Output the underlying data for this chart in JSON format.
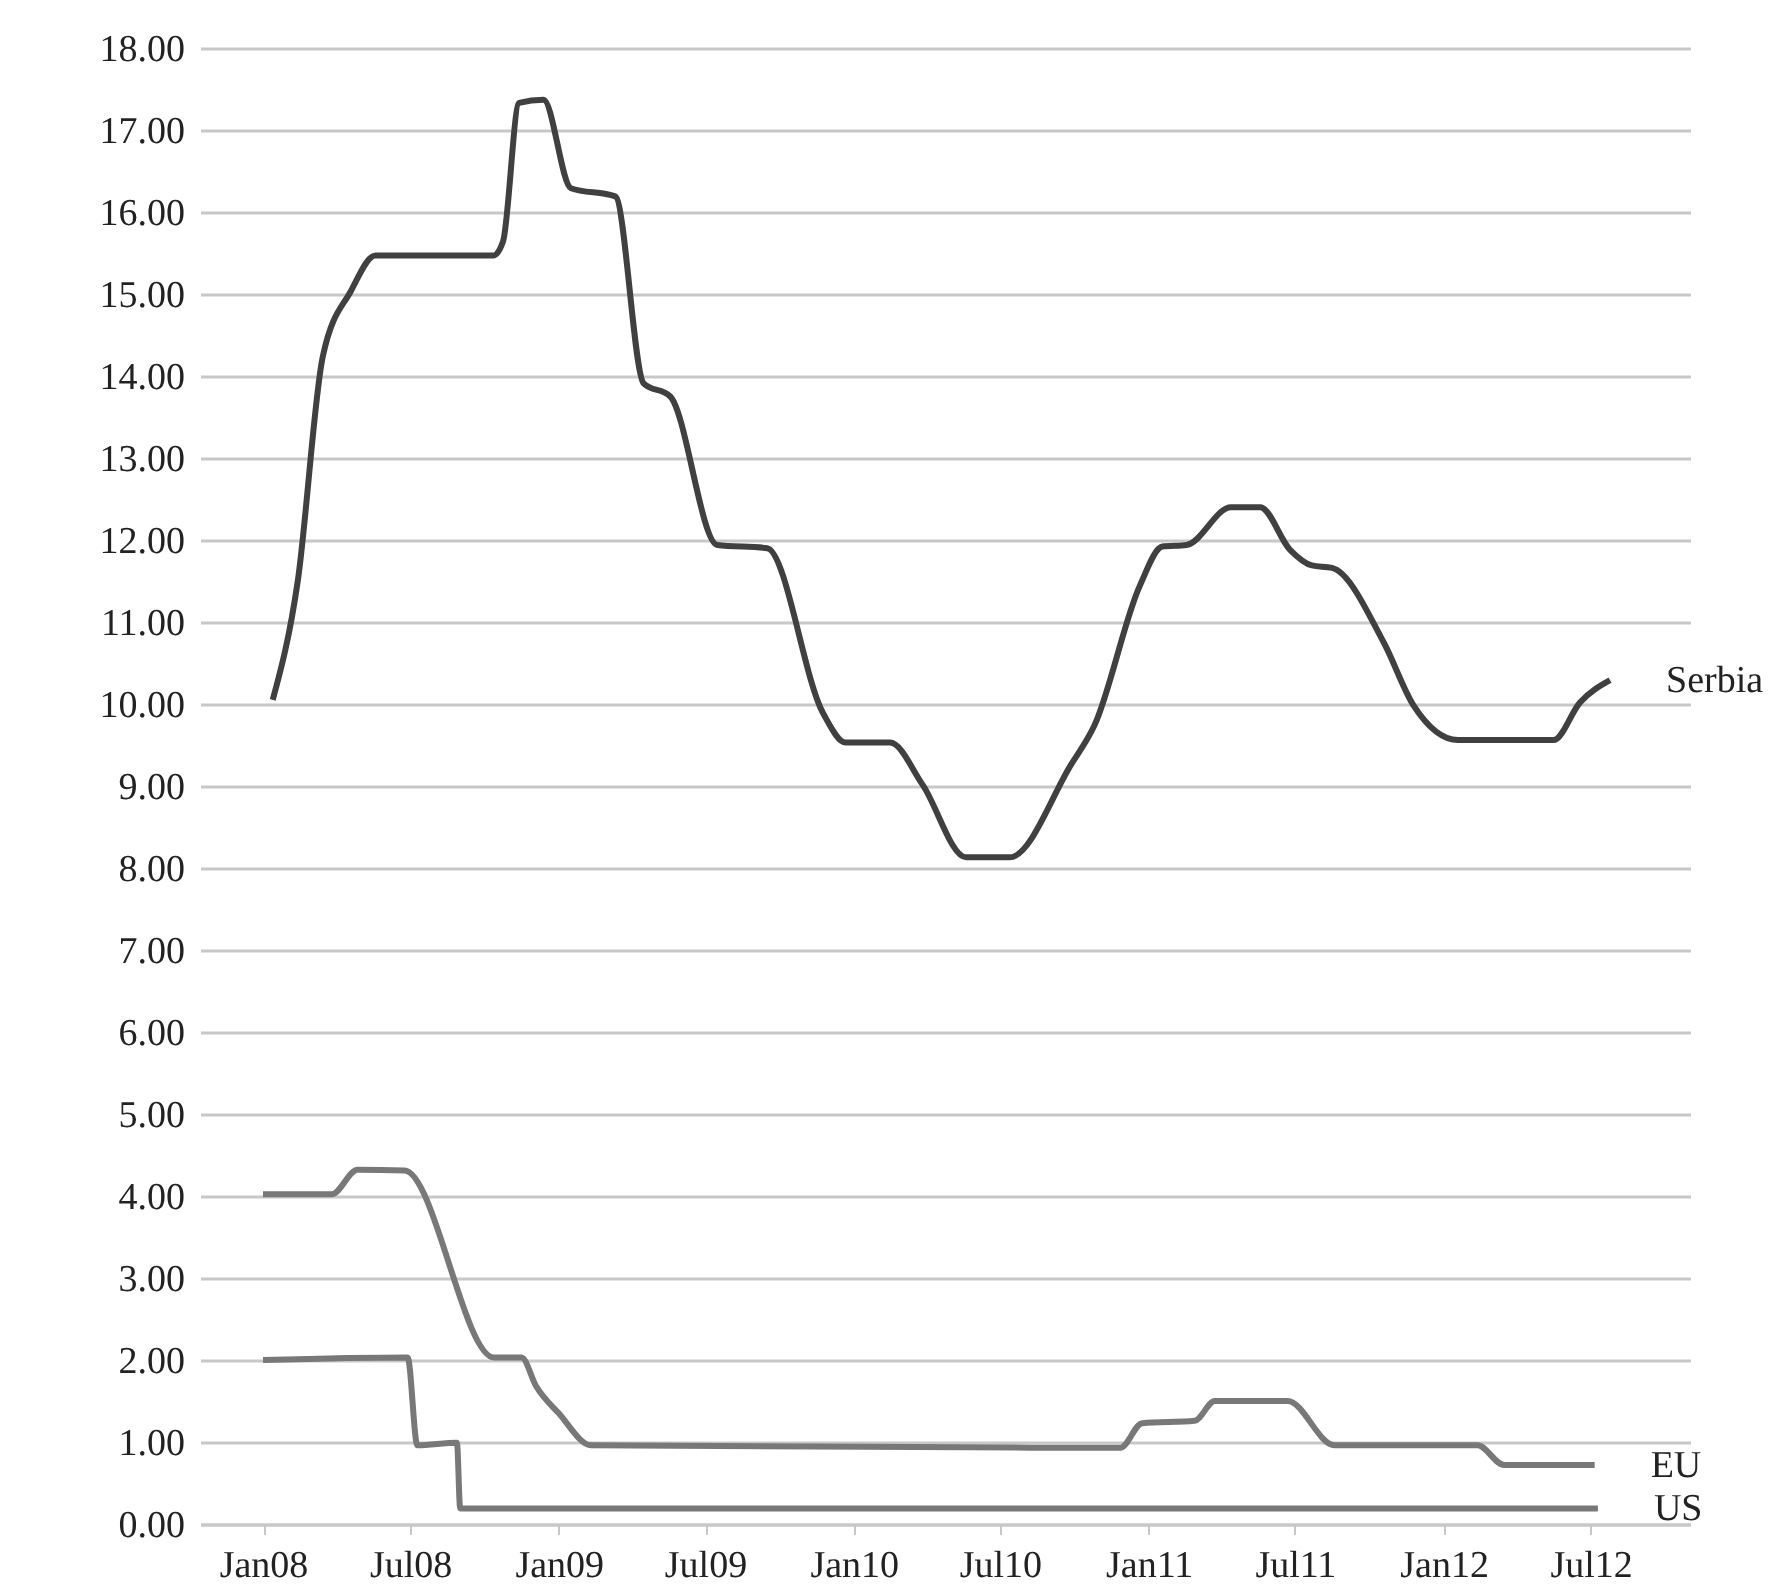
{
  "chart_data": {
    "type": "line",
    "xlim": [
      "2007-10-15",
      "2012-11-01"
    ],
    "xticks": [
      {
        "value": "2008-01-01",
        "label": "Jan08"
      },
      {
        "value": "2008-07-01",
        "label": "Jul08"
      },
      {
        "value": "2009-01-01",
        "label": "Jan09"
      },
      {
        "value": "2009-07-01",
        "label": "Jul09"
      },
      {
        "value": "2010-01-01",
        "label": "Jan10"
      },
      {
        "value": "2010-07-01",
        "label": "Jul10"
      },
      {
        "value": "2011-01-01",
        "label": "Jan11"
      },
      {
        "value": "2011-07-01",
        "label": "Jul11"
      },
      {
        "value": "2012-01-01",
        "label": "Jan12"
      },
      {
        "value": "2012-07-01",
        "label": "Jul12"
      }
    ],
    "ylim": [
      0,
      18
    ],
    "yticks": [
      {
        "value": 0,
        "label": "0.00"
      },
      {
        "value": 1,
        "label": "1.00"
      },
      {
        "value": 2,
        "label": "2.00"
      },
      {
        "value": 3,
        "label": "3.00"
      },
      {
        "value": 4,
        "label": "4.00"
      },
      {
        "value": 5,
        "label": "5.00"
      },
      {
        "value": 6,
        "label": "6.00"
      },
      {
        "value": 7,
        "label": "7.00"
      },
      {
        "value": 8,
        "label": "8.00"
      },
      {
        "value": 9,
        "label": "9.00"
      },
      {
        "value": 10,
        "label": "10.00"
      },
      {
        "value": 11,
        "label": "11.00"
      },
      {
        "value": 12,
        "label": "12.00"
      },
      {
        "value": 13,
        "label": "13.00"
      },
      {
        "value": 14,
        "label": "14.00"
      },
      {
        "value": 15,
        "label": "15.00"
      },
      {
        "value": 16,
        "label": "16.00"
      },
      {
        "value": 17,
        "label": "17.00"
      },
      {
        "value": 18,
        "label": "18.00"
      }
    ],
    "grid": "y",
    "legend": false,
    "marker": "none",
    "line_style": "solid",
    "series": [
      {
        "name": "Serbia",
        "color": "#404040",
        "x": [
          "2008-01-13",
          "2008-02-13",
          "2008-03-15",
          "2008-04-19",
          "2008-05-19",
          "2008-10-12",
          "2008-10-24",
          "2008-11-13",
          "2008-12-13",
          "2009-01-16",
          "2009-03-12",
          "2009-04-16",
          "2009-05-19",
          "2009-07-16",
          "2009-09-16",
          "2009-11-24",
          "2009-12-22",
          "2010-02-15",
          "2010-03-27",
          "2010-05-20",
          "2010-07-13",
          "2010-09-27",
          "2010-10-26",
          "2010-12-21",
          "2011-01-18",
          "2011-02-17",
          "2011-04-13",
          "2011-05-19",
          "2011-06-25",
          "2011-07-22",
          "2011-08-16",
          "2011-10-19",
          "2011-11-25",
          "2012-01-19",
          "2012-05-16",
          "2012-06-18",
          "2012-07-25"
        ],
        "values": [
          10.05,
          11.5,
          14.24,
          15.04,
          15.47,
          15.47,
          15.64,
          17.33,
          17.37,
          16.29,
          16.19,
          13.91,
          13.75,
          11.94,
          11.9,
          9.89,
          9.53,
          9.53,
          9.02,
          8.13,
          8.13,
          9.26,
          9.74,
          11.44,
          11.92,
          11.94,
          12.4,
          12.4,
          11.88,
          11.69,
          11.66,
          10.75,
          9.98,
          9.56,
          9.56,
          10.02,
          10.29
        ]
      },
      {
        "name": "EU",
        "color": "#787878",
        "x": [
          "2008-01-01",
          "2008-03-26",
          "2008-04-27",
          "2008-06-24",
          "2008-10-13",
          "2008-11-16",
          "2008-12-04",
          "2009-01-01",
          "2009-02-10",
          "2010-11-27",
          "2010-12-24",
          "2011-02-27",
          "2011-03-24",
          "2011-06-22",
          "2011-08-19",
          "2012-02-12",
          "2012-03-16",
          "2012-07-06"
        ],
        "values": [
          4.02,
          4.02,
          4.32,
          4.31,
          2.03,
          2.03,
          1.68,
          1.35,
          0.96,
          0.93,
          1.23,
          1.26,
          1.5,
          1.5,
          0.96,
          0.96,
          0.72,
          0.72
        ]
      },
      {
        "name": "US",
        "color": "#787878",
        "x": [
          "2008-01-01",
          "2008-06-28",
          "2008-07-10",
          "2008-08-28",
          "2008-09-01",
          "2012-07-10"
        ],
        "values": [
          2.0,
          2.03,
          0.96,
          0.99,
          0.19,
          0.19
        ]
      }
    ]
  }
}
